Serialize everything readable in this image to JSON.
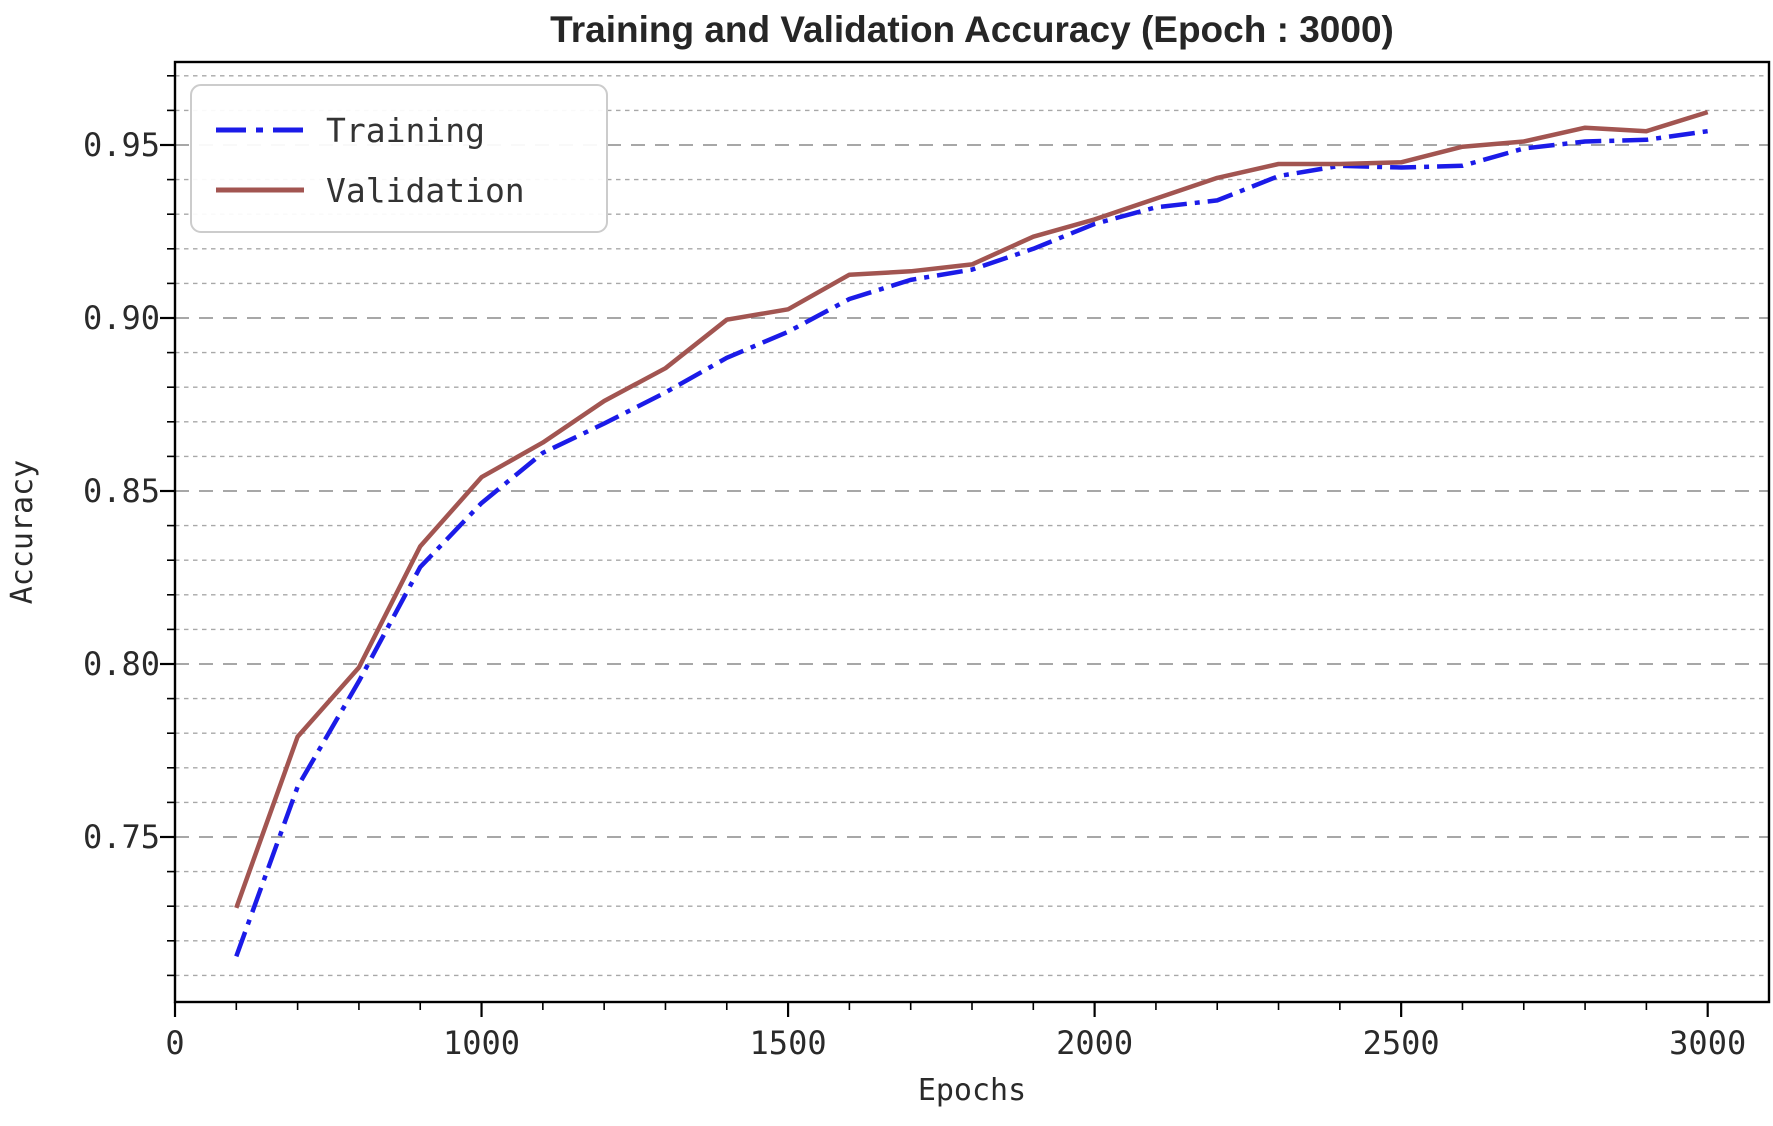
{
  "title": "Training and Validation Accuracy (Epoch : 3000)",
  "background_color": "#ffffff",
  "legend": {
    "position": "top-left",
    "entries": [
      {
        "label": "Training",
        "color": "#1b1be8",
        "style": "dash-dot"
      },
      {
        "label": "Validation",
        "color": "#a25551",
        "style": "solid"
      }
    ]
  },
  "chart_data": {
    "type": "line",
    "title": "Training and Validation Accuracy (Epoch : 3000)",
    "xlabel": "Epochs",
    "ylabel": "Accuracy",
    "grid": "horizontal dashed, every 0.01, bolder at 0.05 steps",
    "x_axis": {
      "unit_range": [
        0,
        26
      ],
      "major_ticks": [
        {
          "unit": 0,
          "label": "0"
        },
        {
          "unit": 5,
          "label": "1000"
        },
        {
          "unit": 10,
          "label": "1500"
        },
        {
          "unit": 15,
          "label": "2000"
        },
        {
          "unit": 20,
          "label": "2500"
        },
        {
          "unit": 25,
          "label": "3000"
        }
      ],
      "minor_tick_unit_step": 1
    },
    "y_axis": {
      "min": 0.702,
      "max": 0.974,
      "major_tick_labels": [
        "0.75",
        "0.80",
        "0.85",
        "0.90",
        "0.95"
      ],
      "major_step": 0.05,
      "grid_step": 0.01
    },
    "series": [
      {
        "name": "Training",
        "color": "#1b1be8",
        "style": "dash-dot",
        "x_units": [
          1,
          2,
          3,
          4,
          5,
          6,
          7,
          8,
          9,
          10,
          11,
          12,
          13,
          14,
          15,
          16,
          17,
          18,
          19,
          20,
          21,
          22,
          23,
          24,
          25
        ],
        "values": [
          0.7155,
          0.7645,
          0.795,
          0.828,
          0.8465,
          0.861,
          0.8695,
          0.8785,
          0.8885,
          0.896,
          0.9055,
          0.911,
          0.914,
          0.92,
          0.9272,
          0.932,
          0.934,
          0.941,
          0.944,
          0.9435,
          0.944,
          0.949,
          0.951,
          0.9515,
          0.954
        ]
      },
      {
        "name": "Validation",
        "color": "#a25551",
        "style": "solid",
        "x_units": [
          1,
          2,
          3,
          4,
          5,
          6,
          7,
          8,
          9,
          10,
          11,
          12,
          13,
          14,
          15,
          16,
          17,
          18,
          19,
          20,
          21,
          22,
          23,
          24,
          25
        ],
        "values": [
          0.7295,
          0.779,
          0.799,
          0.834,
          0.854,
          0.864,
          0.876,
          0.8855,
          0.8995,
          0.9025,
          0.9125,
          0.9135,
          0.9155,
          0.9235,
          0.9285,
          0.9345,
          0.9405,
          0.9445,
          0.9445,
          0.945,
          0.9495,
          0.951,
          0.955,
          0.954,
          0.9595
        ]
      }
    ]
  }
}
